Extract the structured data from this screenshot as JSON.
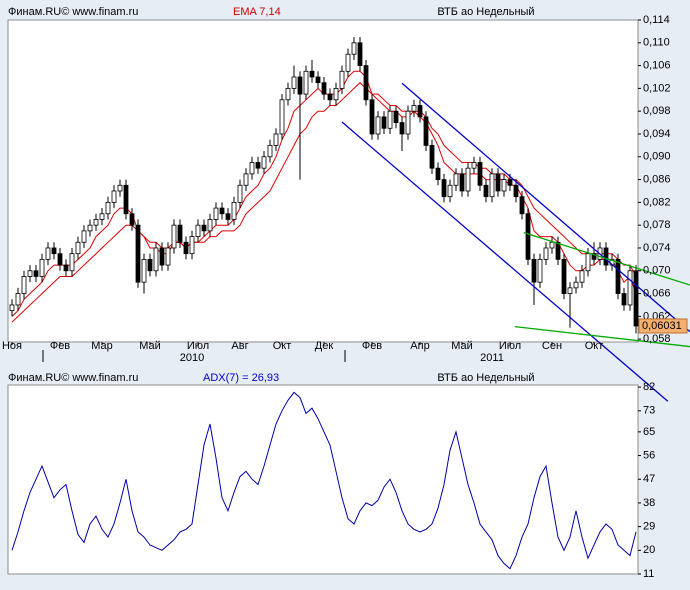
{
  "chart_data": [
    {
      "type": "candlestick",
      "source": "Финам.RU© www.finam.ru",
      "indicator": "EMA 7,14",
      "title": "ВТБ ао Недельный",
      "open": [
        0.063,
        0.064,
        0.066,
        0.069,
        0.07,
        0.069,
        0.072,
        0.074,
        0.073,
        0.071,
        0.07,
        0.073,
        0.075,
        0.077,
        0.078,
        0.079,
        0.08,
        0.082,
        0.084,
        0.085,
        0.08,
        0.078,
        0.068,
        0.072,
        0.07,
        0.074,
        0.071,
        0.074,
        0.078,
        0.075,
        0.073,
        0.076,
        0.078,
        0.077,
        0.079,
        0.081,
        0.08,
        0.079,
        0.082,
        0.085,
        0.087,
        0.089,
        0.088,
        0.09,
        0.092,
        0.094,
        0.1,
        0.102,
        0.104,
        0.101,
        0.105,
        0.104,
        0.103,
        0.101,
        0.1,
        0.102,
        0.105,
        0.108,
        0.11,
        0.106,
        0.1,
        0.094,
        0.097,
        0.095,
        0.098,
        0.096,
        0.094,
        0.098,
        0.099,
        0.097,
        0.092,
        0.088,
        0.086,
        0.083,
        0.085,
        0.087,
        0.084,
        0.088,
        0.089,
        0.085,
        0.083,
        0.087,
        0.084,
        0.086,
        0.085,
        0.083,
        0.08,
        0.072,
        0.068,
        0.072,
        0.074,
        0.075,
        0.072,
        0.066,
        0.067,
        0.068,
        0.07,
        0.073,
        0.072,
        0.074,
        0.071,
        0.072,
        0.066,
        0.064,
        0.07
      ],
      "high": [
        0.065,
        0.067,
        0.07,
        0.071,
        0.071,
        0.073,
        0.075,
        0.075,
        0.074,
        0.072,
        0.074,
        0.076,
        0.078,
        0.079,
        0.08,
        0.081,
        0.083,
        0.085,
        0.086,
        0.086,
        0.081,
        0.079,
        0.073,
        0.073,
        0.075,
        0.075,
        0.075,
        0.079,
        0.079,
        0.076,
        0.077,
        0.079,
        0.079,
        0.08,
        0.082,
        0.082,
        0.081,
        0.083,
        0.086,
        0.088,
        0.09,
        0.09,
        0.091,
        0.093,
        0.095,
        0.101,
        0.103,
        0.106,
        0.105,
        0.106,
        0.107,
        0.105,
        0.104,
        0.102,
        0.103,
        0.106,
        0.109,
        0.111,
        0.111,
        0.107,
        0.101,
        0.098,
        0.098,
        0.099,
        0.099,
        0.097,
        0.099,
        0.1,
        0.1,
        0.098,
        0.093,
        0.089,
        0.087,
        0.086,
        0.088,
        0.088,
        0.089,
        0.09,
        0.09,
        0.086,
        0.088,
        0.088,
        0.087,
        0.087,
        0.086,
        0.084,
        0.081,
        0.073,
        0.073,
        0.075,
        0.076,
        0.076,
        0.073,
        0.068,
        0.069,
        0.071,
        0.074,
        0.075,
        0.075,
        0.075,
        0.073,
        0.073,
        0.067,
        0.071,
        0.071
      ],
      "low": [
        0.062,
        0.063,
        0.065,
        0.068,
        0.068,
        0.068,
        0.071,
        0.072,
        0.07,
        0.069,
        0.069,
        0.072,
        0.074,
        0.076,
        0.077,
        0.078,
        0.079,
        0.081,
        0.083,
        0.079,
        0.077,
        0.067,
        0.066,
        0.069,
        0.069,
        0.07,
        0.07,
        0.073,
        0.074,
        0.072,
        0.072,
        0.075,
        0.076,
        0.076,
        0.078,
        0.079,
        0.078,
        0.078,
        0.081,
        0.084,
        0.086,
        0.087,
        0.087,
        0.089,
        0.091,
        0.093,
        0.099,
        0.101,
        0.086,
        0.1,
        0.103,
        0.102,
        0.1,
        0.099,
        0.099,
        0.101,
        0.104,
        0.107,
        0.105,
        0.099,
        0.093,
        0.093,
        0.094,
        0.094,
        0.095,
        0.091,
        0.093,
        0.097,
        0.096,
        0.091,
        0.087,
        0.085,
        0.082,
        0.082,
        0.084,
        0.083,
        0.083,
        0.087,
        0.084,
        0.082,
        0.082,
        0.083,
        0.083,
        0.084,
        0.082,
        0.079,
        0.071,
        0.064,
        0.067,
        0.071,
        0.073,
        0.071,
        0.065,
        0.06,
        0.066,
        0.067,
        0.069,
        0.071,
        0.071,
        0.07,
        0.07,
        0.065,
        0.063,
        0.063,
        0.059
      ],
      "close": [
        0.064,
        0.066,
        0.069,
        0.07,
        0.069,
        0.072,
        0.074,
        0.073,
        0.071,
        0.07,
        0.073,
        0.075,
        0.077,
        0.078,
        0.079,
        0.08,
        0.082,
        0.084,
        0.085,
        0.08,
        0.078,
        0.068,
        0.072,
        0.07,
        0.074,
        0.071,
        0.074,
        0.078,
        0.075,
        0.073,
        0.076,
        0.078,
        0.077,
        0.079,
        0.081,
        0.08,
        0.079,
        0.082,
        0.085,
        0.087,
        0.089,
        0.088,
        0.09,
        0.092,
        0.094,
        0.1,
        0.102,
        0.104,
        0.101,
        0.105,
        0.104,
        0.103,
        0.101,
        0.1,
        0.102,
        0.105,
        0.108,
        0.11,
        0.106,
        0.1,
        0.094,
        0.097,
        0.095,
        0.098,
        0.096,
        0.094,
        0.098,
        0.099,
        0.097,
        0.092,
        0.088,
        0.086,
        0.083,
        0.085,
        0.087,
        0.084,
        0.088,
        0.089,
        0.085,
        0.083,
        0.087,
        0.084,
        0.086,
        0.085,
        0.083,
        0.08,
        0.072,
        0.068,
        0.072,
        0.074,
        0.075,
        0.072,
        0.066,
        0.067,
        0.068,
        0.07,
        0.073,
        0.072,
        0.074,
        0.071,
        0.072,
        0.066,
        0.064,
        0.07,
        0.06031
      ],
      "ema": [
        {
          "color": "#e00000",
          "values": [
            0.062,
            0.063,
            0.065,
            0.066,
            0.067,
            0.068,
            0.07,
            0.071,
            0.071,
            0.071,
            0.071,
            0.072,
            0.073,
            0.074,
            0.076,
            0.077,
            0.078,
            0.08,
            0.081,
            0.081,
            0.08,
            0.077,
            0.076,
            0.074,
            0.074,
            0.073,
            0.073,
            0.075,
            0.075,
            0.074,
            0.075,
            0.075,
            0.076,
            0.077,
            0.078,
            0.078,
            0.078,
            0.079,
            0.081,
            0.083,
            0.084,
            0.085,
            0.087,
            0.088,
            0.09,
            0.093,
            0.095,
            0.098,
            0.099,
            0.1,
            0.101,
            0.102,
            0.101,
            0.101,
            0.101,
            0.102,
            0.104,
            0.105,
            0.105,
            0.104,
            0.101,
            0.1,
            0.099,
            0.098,
            0.098,
            0.097,
            0.097,
            0.098,
            0.097,
            0.096,
            0.094,
            0.092,
            0.089,
            0.088,
            0.087,
            0.087,
            0.087,
            0.087,
            0.087,
            0.086,
            0.086,
            0.086,
            0.086,
            0.085,
            0.085,
            0.083,
            0.081,
            0.077,
            0.076,
            0.076,
            0.076,
            0.075,
            0.073,
            0.071,
            0.07,
            0.07,
            0.071,
            0.071,
            0.072,
            0.072,
            0.072,
            0.07,
            0.068,
            0.069,
            0.066
          ]
        },
        {
          "color": "#e00000",
          "values": [
            0.061,
            0.062,
            0.063,
            0.064,
            0.065,
            0.066,
            0.067,
            0.068,
            0.069,
            0.069,
            0.069,
            0.07,
            0.071,
            0.072,
            0.073,
            0.074,
            0.075,
            0.076,
            0.077,
            0.078,
            0.078,
            0.077,
            0.076,
            0.075,
            0.075,
            0.074,
            0.074,
            0.075,
            0.075,
            0.074,
            0.075,
            0.075,
            0.075,
            0.076,
            0.076,
            0.077,
            0.077,
            0.077,
            0.078,
            0.08,
            0.081,
            0.082,
            0.083,
            0.084,
            0.086,
            0.088,
            0.09,
            0.092,
            0.094,
            0.095,
            0.097,
            0.098,
            0.098,
            0.099,
            0.099,
            0.1,
            0.101,
            0.102,
            0.103,
            0.102,
            0.101,
            0.101,
            0.1,
            0.099,
            0.099,
            0.098,
            0.098,
            0.098,
            0.098,
            0.097,
            0.095,
            0.094,
            0.092,
            0.091,
            0.09,
            0.089,
            0.089,
            0.089,
            0.088,
            0.088,
            0.087,
            0.087,
            0.087,
            0.086,
            0.086,
            0.085,
            0.083,
            0.081,
            0.08,
            0.079,
            0.078,
            0.077,
            0.076,
            0.075,
            0.074,
            0.073,
            0.073,
            0.073,
            0.073,
            0.073,
            0.073,
            0.072,
            0.071,
            0.071,
            0.069
          ]
        }
      ],
      "trendlines": [
        {
          "x": [
            65,
            113
          ],
          "y": [
            0.1029,
            0.0593
          ],
          "color": "#0000cc"
        },
        {
          "x": [
            55,
            109.3
          ],
          "y": [
            0.0961,
            0.0471
          ],
          "color": "#0000cc"
        },
        {
          "x": [
            85.3,
            113
          ],
          "y": [
            0.0767,
            0.0675
          ],
          "color": "#00aa00"
        },
        {
          "x": [
            83.8,
            113
          ],
          "y": [
            0.0602,
            0.0567
          ],
          "color": "#00aa00"
        }
      ],
      "last_price": {
        "value": 0.06031,
        "label": "0,06031"
      },
      "xlim": [
        -0.667,
        104.333
      ],
      "xticks": [
        {
          "value": 0,
          "label": "Ноя"
        },
        {
          "value": 8,
          "label": "Фев"
        },
        {
          "value": 15,
          "label": "Мар"
        },
        {
          "value": 23,
          "label": "Май"
        },
        {
          "value": 31,
          "label": "Июл"
        },
        {
          "value": 38,
          "label": "Авг"
        },
        {
          "value": 45,
          "label": "Окт"
        },
        {
          "value": 52,
          "label": "Дек"
        },
        {
          "value": 60,
          "label": "Фев"
        },
        {
          "value": 68,
          "label": "Апр"
        },
        {
          "value": 75,
          "label": "Май"
        },
        {
          "value": 83,
          "label": "Июл"
        },
        {
          "value": 90,
          "label": "Сен"
        },
        {
          "value": 97,
          "label": "Окт"
        }
      ],
      "xticks2": [
        {
          "value": 30,
          "label": "2010"
        },
        {
          "value": 80,
          "label": "2011"
        }
      ],
      "ylim": [
        0.0575,
        0.114
      ],
      "yticks": [
        {
          "value": 0.114,
          "label": "0,114"
        },
        {
          "value": 0.11,
          "label": "0,110"
        },
        {
          "value": 0.106,
          "label": "0,106"
        },
        {
          "value": 0.102,
          "label": "0,102"
        },
        {
          "value": 0.098,
          "label": "0,098"
        },
        {
          "value": 0.094,
          "label": "0,094"
        },
        {
          "value": 0.09,
          "label": "0,090"
        },
        {
          "value": 0.086,
          "label": "0,086"
        },
        {
          "value": 0.082,
          "label": "0,082"
        },
        {
          "value": 0.078,
          "label": "0,078"
        },
        {
          "value": 0.074,
          "label": "0,074"
        },
        {
          "value": 0.07,
          "label": "0,070"
        },
        {
          "value": 0.066,
          "label": "0,066"
        },
        {
          "value": 0.062,
          "label": "0,062"
        },
        {
          "value": 0.058,
          "label": "0,058"
        }
      ]
    },
    {
      "type": "line",
      "source": "Финам.RU© www.finam.ru",
      "indicator": "ADX(7) = 26,93",
      "title": "ВТБ ао Недельный",
      "color": "#0000aa",
      "values": [
        20,
        27,
        35,
        42,
        47,
        52,
        46,
        40,
        43,
        45,
        35,
        26,
        23,
        30,
        33,
        28,
        25,
        30,
        38,
        47,
        35,
        27,
        25,
        22,
        21,
        20,
        22,
        24,
        27,
        28,
        30,
        45,
        60,
        68,
        55,
        40,
        35,
        42,
        48,
        50,
        47,
        45,
        52,
        60,
        68,
        73,
        77,
        80,
        78,
        72,
        74,
        70,
        65,
        60,
        50,
        40,
        32,
        30,
        35,
        38,
        37,
        39,
        44,
        47,
        42,
        35,
        30,
        28,
        27,
        28,
        30,
        36,
        45,
        58,
        65,
        55,
        45,
        38,
        30,
        27,
        24,
        18,
        15,
        13,
        18,
        25,
        30,
        40,
        48,
        52,
        38,
        25,
        20,
        25,
        35,
        25,
        17,
        22,
        27,
        30,
        28,
        22,
        20,
        18,
        27
      ],
      "xlim": [
        -0.667,
        104.333
      ],
      "ylim": [
        11,
        82.8
      ],
      "yticks": [
        82,
        73,
        65,
        56,
        47,
        38,
        29,
        20,
        11
      ]
    }
  ]
}
